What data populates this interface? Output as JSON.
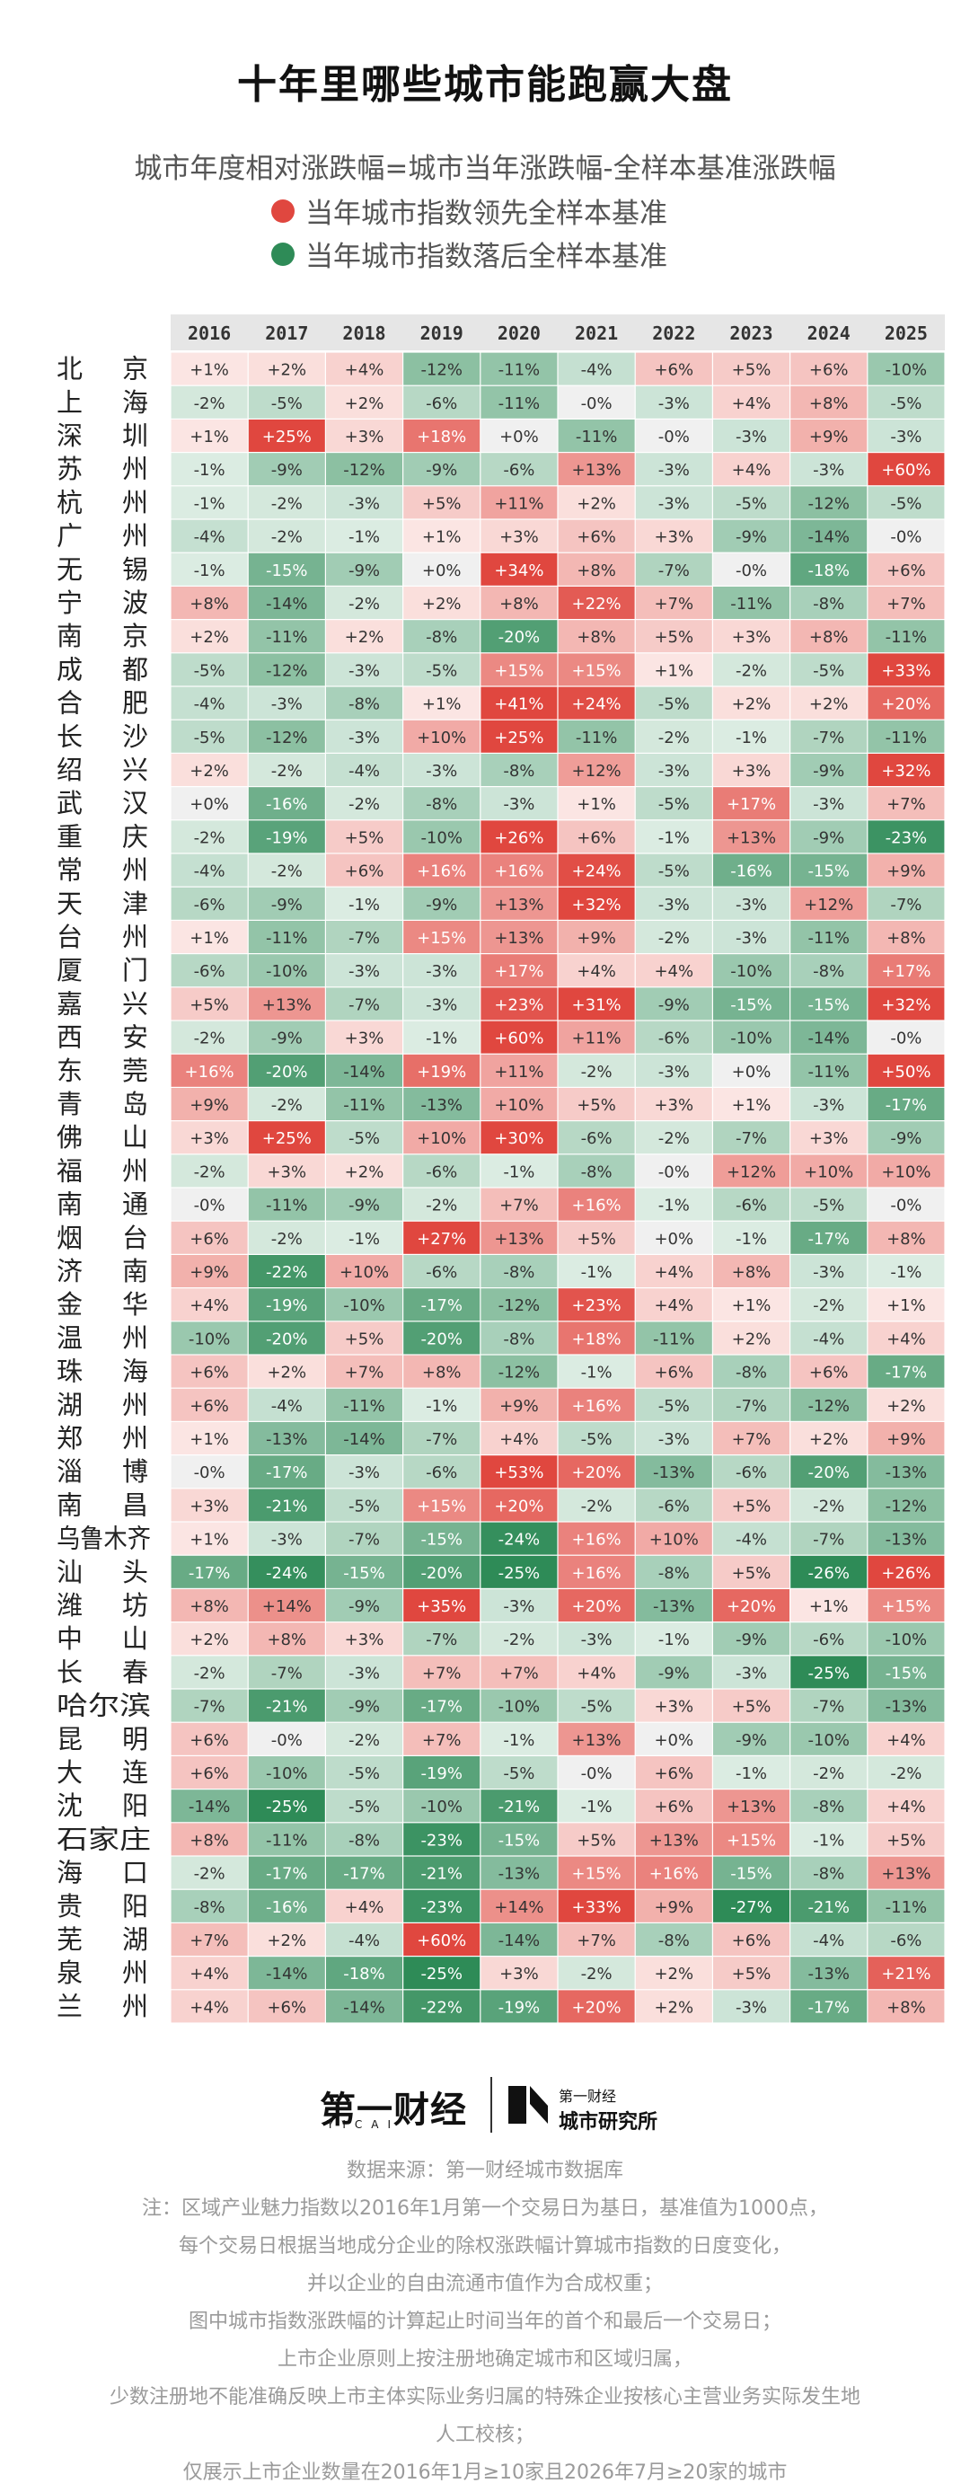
{
  "title": "十年里哪些城市能跑赢大盘",
  "subtitle": "城市年度相对涨跌幅=城市当年涨跌幅-全样本基准涨跌幅",
  "legend": [
    {
      "label": "当年城市指数领先全样本基准",
      "color": "#e0473f"
    },
    {
      "label": "当年城市指数落后全样本基准",
      "color": "#2e8b57"
    }
  ],
  "chart_data": {
    "type": "heatmap",
    "columns": [
      "2016",
      "2017",
      "2018",
      "2019",
      "2020",
      "2021",
      "2022",
      "2023",
      "2024",
      "2025"
    ],
    "rows": [
      "北京",
      "上海",
      "深圳",
      "苏州",
      "杭州",
      "广州",
      "无锡",
      "宁波",
      "南京",
      "成都",
      "合肥",
      "长沙",
      "绍兴",
      "武汉",
      "重庆",
      "常州",
      "天津",
      "台州",
      "厦门",
      "嘉兴",
      "西安",
      "东莞",
      "青岛",
      "佛山",
      "福州",
      "南通",
      "烟台",
      "济南",
      "金华",
      "温州",
      "珠海",
      "湖州",
      "郑州",
      "淄博",
      "南昌",
      "乌鲁木齐",
      "汕头",
      "潍坊",
      "中山",
      "长春",
      "哈尔滨",
      "昆明",
      "大连",
      "沈阳",
      "石家庄",
      "海口",
      "贵阳",
      "芜湖",
      "泉州",
      "兰州"
    ],
    "values": [
      [
        "+1%",
        "+2%",
        "+4%",
        "-12%",
        "-11%",
        "-4%",
        "+6%",
        "+5%",
        "+6%",
        "-10%"
      ],
      [
        "-2%",
        "-5%",
        "+2%",
        "-6%",
        "-11%",
        "-0%",
        "-3%",
        "+4%",
        "+8%",
        "-5%"
      ],
      [
        "+1%",
        "+25%",
        "+3%",
        "+18%",
        "+0%",
        "-11%",
        "-0%",
        "-3%",
        "+9%",
        "-3%"
      ],
      [
        "-1%",
        "-9%",
        "-12%",
        "-9%",
        "-6%",
        "+13%",
        "-3%",
        "+4%",
        "-3%",
        "+60%"
      ],
      [
        "-1%",
        "-2%",
        "-3%",
        "+5%",
        "+11%",
        "+2%",
        "-3%",
        "-5%",
        "-12%",
        "-5%"
      ],
      [
        "-4%",
        "-2%",
        "-1%",
        "+1%",
        "+3%",
        "+6%",
        "+3%",
        "-9%",
        "-14%",
        "-0%"
      ],
      [
        "-1%",
        "-15%",
        "-9%",
        "+0%",
        "+34%",
        "+8%",
        "-7%",
        "-0%",
        "-18%",
        "+6%"
      ],
      [
        "+8%",
        "-14%",
        "-2%",
        "+2%",
        "+8%",
        "+22%",
        "+7%",
        "-11%",
        "-8%",
        "+7%"
      ],
      [
        "+2%",
        "-11%",
        "+2%",
        "-8%",
        "-20%",
        "+8%",
        "+5%",
        "+3%",
        "+8%",
        "-11%"
      ],
      [
        "-5%",
        "-12%",
        "-3%",
        "-5%",
        "+15%",
        "+15%",
        "+1%",
        "-2%",
        "-5%",
        "+33%"
      ],
      [
        "-4%",
        "-3%",
        "-8%",
        "+1%",
        "+41%",
        "+24%",
        "-5%",
        "+2%",
        "+2%",
        "+20%"
      ],
      [
        "-5%",
        "-12%",
        "-3%",
        "+10%",
        "+25%",
        "-11%",
        "-2%",
        "-1%",
        "-7%",
        "-11%"
      ],
      [
        "+2%",
        "-2%",
        "-4%",
        "-3%",
        "-8%",
        "+12%",
        "-3%",
        "+3%",
        "-9%",
        "+32%"
      ],
      [
        "+0%",
        "-16%",
        "-2%",
        "-8%",
        "-3%",
        "+1%",
        "-5%",
        "+17%",
        "-3%",
        "+7%"
      ],
      [
        "-2%",
        "-19%",
        "+5%",
        "-10%",
        "+26%",
        "+6%",
        "-1%",
        "+13%",
        "-9%",
        "-23%"
      ],
      [
        "-4%",
        "-2%",
        "+6%",
        "+16%",
        "+16%",
        "+24%",
        "-5%",
        "-16%",
        "-15%",
        "+9%"
      ],
      [
        "-6%",
        "-9%",
        "-1%",
        "-9%",
        "+13%",
        "+32%",
        "-3%",
        "-3%",
        "+12%",
        "-7%"
      ],
      [
        "+1%",
        "-11%",
        "-7%",
        "+15%",
        "+13%",
        "+9%",
        "-2%",
        "-3%",
        "-11%",
        "+8%"
      ],
      [
        "-6%",
        "-10%",
        "-3%",
        "-3%",
        "+17%",
        "+4%",
        "+4%",
        "-10%",
        "-8%",
        "+17%"
      ],
      [
        "+5%",
        "+13%",
        "-7%",
        "-3%",
        "+23%",
        "+31%",
        "-9%",
        "-15%",
        "-15%",
        "+32%"
      ],
      [
        "-2%",
        "-9%",
        "+3%",
        "-1%",
        "+60%",
        "+11%",
        "-6%",
        "-10%",
        "-14%",
        "-0%"
      ],
      [
        "+16%",
        "-20%",
        "-14%",
        "+19%",
        "+11%",
        "-2%",
        "-3%",
        "+0%",
        "-11%",
        "+50%"
      ],
      [
        "+9%",
        "-2%",
        "-11%",
        "-13%",
        "+10%",
        "+5%",
        "+3%",
        "+1%",
        "-3%",
        "-17%"
      ],
      [
        "+3%",
        "+25%",
        "-5%",
        "+10%",
        "+30%",
        "-6%",
        "-2%",
        "-7%",
        "+3%",
        "-9%"
      ],
      [
        "-2%",
        "+3%",
        "+2%",
        "-6%",
        "-1%",
        "-8%",
        "-0%",
        "+12%",
        "+10%",
        "+10%"
      ],
      [
        "-0%",
        "-11%",
        "-9%",
        "-2%",
        "+7%",
        "+16%",
        "-1%",
        "-6%",
        "-5%",
        "-0%"
      ],
      [
        "+6%",
        "-2%",
        "-1%",
        "+27%",
        "+13%",
        "+5%",
        "+0%",
        "-1%",
        "-17%",
        "+8%"
      ],
      [
        "+9%",
        "-22%",
        "+10%",
        "-6%",
        "-8%",
        "-1%",
        "+4%",
        "+8%",
        "-3%",
        "-1%"
      ],
      [
        "+4%",
        "-19%",
        "-10%",
        "-17%",
        "-12%",
        "+23%",
        "+4%",
        "+1%",
        "-2%",
        "+1%"
      ],
      [
        "-10%",
        "-20%",
        "+5%",
        "-20%",
        "-8%",
        "+18%",
        "-11%",
        "+2%",
        "-4%",
        "+4%"
      ],
      [
        "+6%",
        "+2%",
        "+7%",
        "+8%",
        "-12%",
        "-1%",
        "+6%",
        "-8%",
        "+6%",
        "-17%"
      ],
      [
        "+6%",
        "-4%",
        "-11%",
        "-1%",
        "+9%",
        "+16%",
        "-5%",
        "-7%",
        "-12%",
        "+2%"
      ],
      [
        "+1%",
        "-13%",
        "-14%",
        "-7%",
        "+4%",
        "-5%",
        "-3%",
        "+7%",
        "+2%",
        "+9%"
      ],
      [
        "-0%",
        "-17%",
        "-3%",
        "-6%",
        "+53%",
        "+20%",
        "-13%",
        "-6%",
        "-20%",
        "-13%"
      ],
      [
        "+3%",
        "-21%",
        "-5%",
        "+15%",
        "+20%",
        "-2%",
        "-6%",
        "+5%",
        "-2%",
        "-12%"
      ],
      [
        "+1%",
        "-3%",
        "-7%",
        "-15%",
        "-24%",
        "+16%",
        "+10%",
        "-4%",
        "-7%",
        "-13%"
      ],
      [
        "-17%",
        "-24%",
        "-15%",
        "-20%",
        "-25%",
        "+16%",
        "-8%",
        "+5%",
        "-26%",
        "+26%"
      ],
      [
        "+8%",
        "+14%",
        "-9%",
        "+35%",
        "-3%",
        "+20%",
        "-13%",
        "+20%",
        "+1%",
        "+15%"
      ],
      [
        "+2%",
        "+8%",
        "+3%",
        "-7%",
        "-2%",
        "-3%",
        "-1%",
        "-9%",
        "-6%",
        "-10%"
      ],
      [
        "-2%",
        "-7%",
        "-3%",
        "+7%",
        "+7%",
        "+4%",
        "-9%",
        "-3%",
        "-25%",
        "-15%"
      ],
      [
        "-7%",
        "-21%",
        "-9%",
        "-17%",
        "-10%",
        "-5%",
        "+3%",
        "+5%",
        "-7%",
        "-13%"
      ],
      [
        "+6%",
        "-0%",
        "-2%",
        "+7%",
        "-1%",
        "+13%",
        "+0%",
        "-9%",
        "-10%",
        "+4%"
      ],
      [
        "+6%",
        "-10%",
        "-5%",
        "-19%",
        "-5%",
        "-0%",
        "+6%",
        "-1%",
        "-2%",
        "-2%"
      ],
      [
        "-14%",
        "-25%",
        "-5%",
        "-10%",
        "-21%",
        "-1%",
        "+6%",
        "+13%",
        "-8%",
        "+4%"
      ],
      [
        "+8%",
        "-11%",
        "-8%",
        "-23%",
        "-15%",
        "+5%",
        "+13%",
        "+15%",
        "-1%",
        "+5%"
      ],
      [
        "-2%",
        "-17%",
        "-17%",
        "-21%",
        "-13%",
        "+15%",
        "+16%",
        "-15%",
        "-8%",
        "+13%"
      ],
      [
        "-8%",
        "-16%",
        "+4%",
        "-23%",
        "+14%",
        "+33%",
        "+9%",
        "-27%",
        "-21%",
        "-11%"
      ],
      [
        "+7%",
        "+2%",
        "-4%",
        "+60%",
        "-14%",
        "+7%",
        "-8%",
        "+6%",
        "-4%",
        "-6%"
      ],
      [
        "+4%",
        "-14%",
        "-18%",
        "-25%",
        "+3%",
        "-2%",
        "+2%",
        "+5%",
        "-13%",
        "+21%"
      ],
      [
        "+4%",
        "+6%",
        "-14%",
        "-22%",
        "-19%",
        "+20%",
        "+2%",
        "-3%",
        "-17%",
        "+8%"
      ]
    ]
  },
  "brand": {
    "name": "第一财经",
    "latin": "YICAI",
    "sub_small": "第一财经",
    "sub_big": "城市研究所"
  },
  "notes": [
    "数据来源：第一财经城市数据库",
    "注：区域产业魅力指数以2016年1月第一个交易日为基日，基准值为1000点，",
    "每个交易日根据当地成分企业的除权涨跌幅计算城市指数的日度变化，",
    "并以企业的自由流通市值作为合成权重；",
    "图中城市指数涨跌幅的计算起止时间当年的首个和最后一个交易日；",
    "上市企业原则上按注册地确定城市和区域归属，",
    "少数注册地不能准确反映上市主体实际业务归属的特殊企业按核心主营业务实际发生地",
    "人工校核；",
    "仅展示上市企业数量在2016年1月≥10家且2026年7月≥20家的城市"
  ]
}
